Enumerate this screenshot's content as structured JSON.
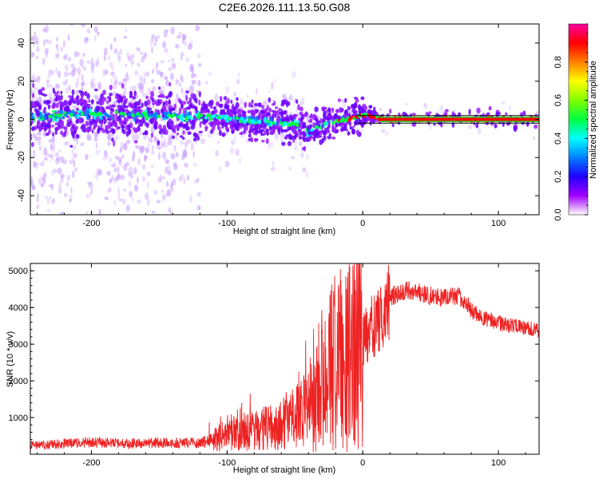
{
  "title": "C2E6.2026.111.13.50.G08",
  "chart_data": [
    {
      "type": "heatmap",
      "name": "spectrogram",
      "xlabel": "Height of straight line (km)",
      "ylabel": "Frequency (Hz)",
      "xlim": [
        -245,
        130
      ],
      "ylim": [
        -50,
        50
      ],
      "xticks": [
        -200,
        -100,
        0,
        100
      ],
      "yticks": [
        -40,
        -20,
        0,
        20,
        40
      ],
      "ridge": [
        [
          -245,
          1
        ],
        [
          -200,
          3
        ],
        [
          -150,
          2
        ],
        [
          -100,
          1
        ],
        [
          -80,
          -1
        ],
        [
          -60,
          -2
        ],
        [
          -45,
          -3
        ],
        [
          -40,
          -7
        ],
        [
          -30,
          -3
        ],
        [
          -20,
          -1
        ],
        [
          -10,
          0
        ],
        [
          0,
          2
        ],
        [
          5,
          2
        ],
        [
          15,
          0
        ],
        [
          130,
          0
        ]
      ],
      "reference_lines_hz": [
        -2,
        2
      ],
      "colorbar": {
        "label": "Normalized spectral amplitude",
        "range": [
          0,
          1
        ],
        "ticks": [
          "0.0",
          "0.2",
          "0.4",
          "0.6",
          "0.8"
        ],
        "colors": [
          "#ffffff",
          "#a000ff",
          "#2000ff",
          "#0080ff",
          "#00ffff",
          "#00ff40",
          "#80ff00",
          "#ffff00",
          "#ff8000",
          "#ff0000",
          "#ff00a0"
        ]
      }
    },
    {
      "type": "line",
      "name": "snr",
      "xlabel": "Height of straight line (km)",
      "ylabel": "SNR (10 * v/v)",
      "xlim": [
        -245,
        130
      ],
      "ylim": [
        0,
        5200
      ],
      "xticks": [
        -200,
        -100,
        0,
        100
      ],
      "yticks": [
        1000,
        2000,
        3000,
        4000,
        5000
      ],
      "color": "#ee2222",
      "envelope": [
        [
          -245,
          250
        ],
        [
          -220,
          300
        ],
        [
          -200,
          350
        ],
        [
          -180,
          300
        ],
        [
          -150,
          330
        ],
        [
          -120,
          320
        ],
        [
          -105,
          500
        ],
        [
          -90,
          650
        ],
        [
          -75,
          750
        ],
        [
          -60,
          900
        ],
        [
          -45,
          1200
        ],
        [
          -35,
          1700
        ],
        [
          -25,
          2400
        ],
        [
          -18,
          2900
        ],
        [
          -12,
          3000
        ],
        [
          -5,
          3100
        ],
        [
          0,
          3200
        ],
        [
          8,
          3600
        ],
        [
          15,
          3900
        ],
        [
          20,
          4300
        ],
        [
          30,
          4500
        ],
        [
          45,
          4400
        ],
        [
          55,
          4300
        ],
        [
          70,
          4350
        ],
        [
          85,
          3800
        ],
        [
          100,
          3600
        ],
        [
          115,
          3500
        ],
        [
          130,
          3400
        ]
      ]
    }
  ]
}
